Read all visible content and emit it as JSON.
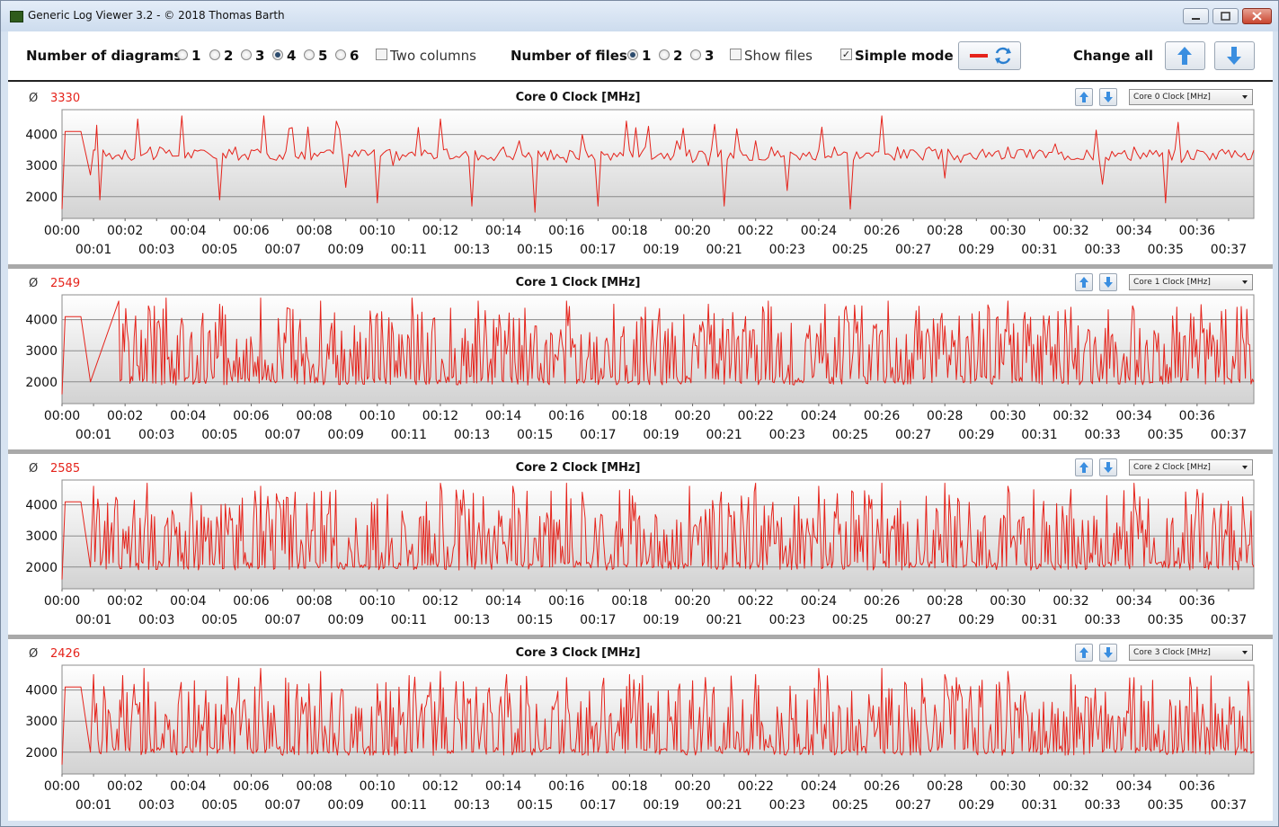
{
  "window": {
    "title": "Generic Log Viewer 3.2 - © 2018 Thomas Barth"
  },
  "toolbar": {
    "diagrams_label": "Number of diagrams",
    "diagram_options": [
      "1",
      "2",
      "3",
      "4",
      "5",
      "6"
    ],
    "diagrams_selected": "4",
    "two_columns_label": "Two columns",
    "two_columns_checked": false,
    "files_label": "Number of files",
    "file_options": [
      "1",
      "2",
      "3"
    ],
    "files_selected": "1",
    "show_files_label": "Show files",
    "show_files_checked": false,
    "simple_mode_label": "Simple mode",
    "simple_mode_checked": true,
    "change_all_label": "Change all",
    "accent_color": "#e5231b"
  },
  "panels": [
    {
      "title": "Core 0 Clock [MHz]",
      "average_symbol": "Ø",
      "average": "3330",
      "select_value": "Core 0 Clock [MHz]"
    },
    {
      "title": "Core 1 Clock [MHz]",
      "average_symbol": "Ø",
      "average": "2549",
      "select_value": "Core 1 Clock [MHz]"
    },
    {
      "title": "Core 2 Clock [MHz]",
      "average_symbol": "Ø",
      "average": "2585",
      "select_value": "Core 2 Clock [MHz]"
    },
    {
      "title": "Core 3 Clock [MHz]",
      "average_symbol": "Ø",
      "average": "2426",
      "select_value": "Core 3 Clock [MHz]"
    }
  ],
  "chart_data": [
    {
      "type": "line",
      "title": "Core 0 Clock [MHz]",
      "ylim": [
        1300,
        4800
      ],
      "y_ticks": [
        2000,
        3000,
        4000
      ],
      "x_range_minutes": [
        0,
        37.8
      ],
      "grid": true,
      "x_ticks": [
        "00:00",
        "00:01",
        "00:02",
        "00:03",
        "00:04",
        "00:05",
        "00:06",
        "00:07",
        "00:08",
        "00:09",
        "00:10",
        "00:11",
        "00:12",
        "00:13",
        "00:14",
        "00:15",
        "00:16",
        "00:17",
        "00:18",
        "00:19",
        "00:20",
        "00:21",
        "00:22",
        "00:23",
        "00:24",
        "00:25",
        "00:26",
        "00:27",
        "00:28",
        "00:29",
        "00:30",
        "00:31",
        "00:32",
        "00:33",
        "00:34",
        "00:35",
        "00:36",
        "00:37"
      ],
      "series": [
        {
          "color": "#e5231b",
          "profile": "steady",
          "average": 3330,
          "x": [
            0,
            0.1,
            0.5,
            0.6,
            0.9,
            1.0,
            1.1,
            1.2,
            2.0,
            2.4,
            2.8,
            3.1,
            3.8,
            4.2,
            4.4,
            5.0,
            5.5,
            6.0,
            6.4,
            7.0,
            7.4,
            8.0,
            8.5,
            9.0,
            9.5,
            10.0,
            10.5,
            11.0,
            11.5,
            12.0,
            12.5,
            13.0,
            13.5,
            14.0,
            14.5,
            15.0,
            15.5,
            16.0,
            16.5,
            17.0,
            17.5,
            18.0,
            18.5,
            19.0,
            19.5,
            20.0,
            20.5,
            21.0,
            21.5,
            22.0,
            22.5,
            23.0,
            23.5,
            24.0,
            24.5,
            25.0,
            25.5,
            26.0,
            26.5,
            27.0,
            27.5,
            28.0,
            28.5,
            29.0,
            29.5,
            30.0,
            30.5,
            31.0,
            31.5,
            32.0,
            32.5,
            33.0,
            33.5,
            34.0,
            34.5,
            35.0,
            35.5,
            36.0,
            36.5,
            37.0,
            37.5,
            37.8
          ],
          "y": [
            1600,
            4100,
            4100,
            4100,
            2700,
            3500,
            4300,
            1900,
            3500,
            4500,
            3600,
            3600,
            4600,
            3500,
            3500,
            1900,
            3600,
            3500,
            4600,
            3200,
            3300,
            3400,
            3500,
            2300,
            3500,
            1800,
            3000,
            3400,
            3500,
            4500,
            3300,
            1700,
            3200,
            3600,
            3800,
            1500,
            3500,
            3100,
            4000,
            1700,
            3400,
            3500,
            3600,
            3400,
            3800,
            3100,
            3000,
            1700,
            3500,
            3800,
            3600,
            2200,
            3400,
            3500,
            3600,
            1600,
            3400,
            4600,
            3600,
            3500,
            3600,
            2600,
            3100,
            3200,
            3300,
            3600,
            3500,
            3500,
            3700,
            3200,
            3500,
            2400,
            3400,
            3600,
            3500,
            1800,
            3100,
            3500,
            3400,
            3500,
            3400,
            3500
          ]
        }
      ]
    },
    {
      "type": "line",
      "title": "Core 1 Clock [MHz]",
      "ylim": [
        1300,
        4800
      ],
      "y_ticks": [
        2000,
        3000,
        4000
      ],
      "x_range_minutes": [
        0,
        37.8
      ],
      "grid": true,
      "x_ticks": [
        "00:00",
        "00:01",
        "00:02",
        "00:03",
        "00:04",
        "00:05",
        "00:06",
        "00:07",
        "00:08",
        "00:09",
        "00:10",
        "00:11",
        "00:12",
        "00:13",
        "00:14",
        "00:15",
        "00:16",
        "00:17",
        "00:18",
        "00:19",
        "00:20",
        "00:21",
        "00:22",
        "00:23",
        "00:24",
        "00:25",
        "00:26",
        "00:27",
        "00:28",
        "00:29",
        "00:30",
        "00:31",
        "00:32",
        "00:33",
        "00:34",
        "00:35",
        "00:36",
        "00:37"
      ],
      "series": [
        {
          "color": "#e5231b",
          "profile": "fluctuating",
          "average": 2549,
          "x": [
            0,
            0.1,
            0.5,
            0.6,
            0.9,
            1.8,
            2.6,
            3.3,
            4.2,
            5.0,
            6.3,
            7.0,
            8.2,
            9.0,
            10.0,
            11.1,
            12.0,
            13.2,
            14.0,
            15.0,
            16.0,
            16.6,
            17.5,
            18.5,
            19.4,
            20.5,
            21.5,
            22.4,
            23.4,
            24.2,
            25.0,
            26.2,
            27.0,
            28.0,
            29.0,
            30.0,
            30.9,
            32.0,
            33.0,
            34.0,
            35.0,
            35.8,
            36.5,
            37.0,
            37.8
          ],
          "y": [
            1600,
            4100,
            4100,
            4100,
            2000,
            4600,
            2100,
            4700,
            2000,
            4500,
            4700,
            2100,
            4600,
            2000,
            4200,
            4700,
            2000,
            4600,
            2000,
            3800,
            4600,
            2100,
            4500,
            4400,
            2100,
            4500,
            2000,
            4600,
            2000,
            4500,
            2100,
            4600,
            2100,
            3800,
            2100,
            4600,
            2000,
            4400,
            2100,
            4300,
            2000,
            4200,
            3500,
            2100,
            2000
          ]
        }
      ]
    },
    {
      "type": "line",
      "title": "Core 2 Clock [MHz]",
      "ylim": [
        1300,
        4800
      ],
      "y_ticks": [
        2000,
        3000,
        4000
      ],
      "x_range_minutes": [
        0,
        37.8
      ],
      "grid": true,
      "x_ticks": [
        "00:00",
        "00:01",
        "00:02",
        "00:03",
        "00:04",
        "00:05",
        "00:06",
        "00:07",
        "00:08",
        "00:09",
        "00:10",
        "00:11",
        "00:12",
        "00:13",
        "00:14",
        "00:15",
        "00:16",
        "00:17",
        "00:18",
        "00:19",
        "00:20",
        "00:21",
        "00:22",
        "00:23",
        "00:24",
        "00:25",
        "00:26",
        "00:27",
        "00:28",
        "00:29",
        "00:30",
        "00:31",
        "00:32",
        "00:33",
        "00:34",
        "00:35",
        "00:36",
        "00:37"
      ],
      "series": [
        {
          "color": "#e5231b",
          "profile": "fluctuating",
          "average": 2585,
          "x": [
            0,
            0.1,
            0.5,
            0.6,
            0.9,
            1.0,
            1.8,
            2.7,
            3.4,
            4.1,
            5.0,
            6.3,
            7.3,
            8.0,
            9.0,
            10.0,
            11.2,
            12.0,
            13.0,
            14.3,
            15.2,
            16.0,
            17.0,
            18.0,
            19.0,
            19.9,
            21.0,
            22.0,
            23.0,
            24.0,
            25.0,
            26.0,
            27.0,
            28.0,
            29.0,
            30.0,
            31.0,
            32.0,
            33.0,
            34.0,
            35.0,
            36.0,
            36.9,
            37.4,
            37.8
          ],
          "y": [
            1600,
            4100,
            4100,
            4100,
            2000,
            4600,
            2100,
            4700,
            2000,
            4400,
            2100,
            4600,
            2000,
            4400,
            2100,
            4200,
            2000,
            4700,
            2000,
            4600,
            2000,
            4700,
            2000,
            4500,
            2100,
            4600,
            2000,
            4700,
            2000,
            4600,
            2100,
            4700,
            2000,
            4700,
            2000,
            4600,
            2100,
            4500,
            2100,
            4700,
            2000,
            4500,
            3200,
            2200,
            2000
          ]
        }
      ]
    },
    {
      "type": "line",
      "title": "Core 3 Clock [MHz]",
      "ylim": [
        1300,
        4800
      ],
      "y_ticks": [
        2000,
        3000,
        4000
      ],
      "x_range_minutes": [
        0,
        37.8
      ],
      "grid": true,
      "x_ticks": [
        "00:00",
        "00:01",
        "00:02",
        "00:03",
        "00:04",
        "00:05",
        "00:06",
        "00:07",
        "00:08",
        "00:09",
        "00:10",
        "00:11",
        "00:12",
        "00:13",
        "00:14",
        "00:15",
        "00:16",
        "00:17",
        "00:18",
        "00:19",
        "00:20",
        "00:21",
        "00:22",
        "00:23",
        "00:24",
        "00:25",
        "00:26",
        "00:27",
        "00:28",
        "00:29",
        "00:30",
        "00:31",
        "00:32",
        "00:33",
        "00:34",
        "00:35",
        "00:36",
        "00:37"
      ],
      "series": [
        {
          "color": "#e5231b",
          "profile": "fluctuating",
          "average": 2426,
          "x": [
            0,
            0.1,
            0.5,
            0.6,
            0.9,
            1.0,
            1.7,
            2.6,
            3.5,
            4.2,
            5.1,
            6.3,
            7.0,
            8.2,
            9.0,
            10.0,
            11.1,
            12.0,
            13.0,
            14.1,
            15.0,
            16.0,
            17.0,
            18.0,
            19.0,
            20.0,
            20.9,
            22.0,
            23.0,
            24.0,
            25.0,
            26.0,
            27.0,
            28.0,
            29.0,
            30.0,
            30.9,
            32.0,
            33.0,
            34.0,
            35.0,
            36.0,
            36.8,
            37.4,
            37.8
          ],
          "y": [
            1600,
            4100,
            4100,
            4100,
            2000,
            4500,
            2100,
            4700,
            2000,
            4300,
            2100,
            4700,
            1900,
            4600,
            2000,
            4200,
            2000,
            4600,
            2000,
            4500,
            2000,
            4400,
            2000,
            4500,
            2100,
            4300,
            2000,
            4500,
            2000,
            4700,
            2000,
            4700,
            2000,
            4500,
            2000,
            4600,
            2000,
            4500,
            2000,
            4400,
            2000,
            4100,
            3400,
            2100,
            2000
          ]
        }
      ]
    }
  ]
}
